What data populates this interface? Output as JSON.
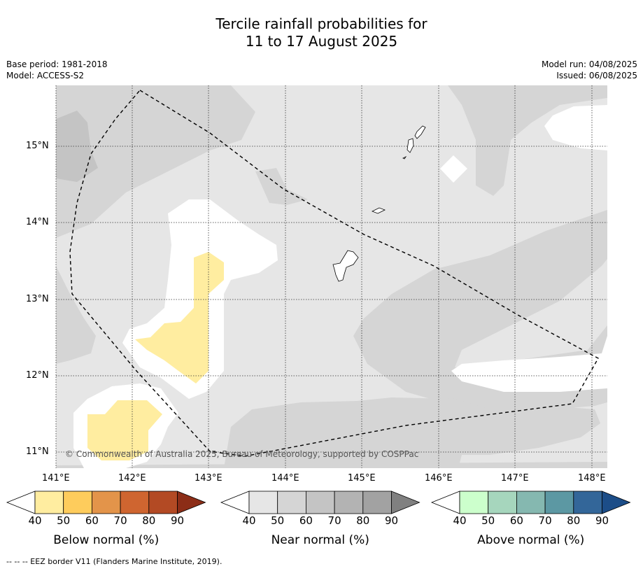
{
  "header": {
    "title_line1": "Tercile rainfall probabilities for",
    "title_line2": "11 to 17 August 2025",
    "base_period": "Base period: 1981-2018",
    "model": "Model: ACCESS-S2",
    "model_run": "Model run: 04/08/2025",
    "issued": "Issued: 06/08/2025"
  },
  "map": {
    "lat_labels": [
      "15°N",
      "14°N",
      "13°N",
      "12°N",
      "11°N"
    ],
    "lon_labels": [
      "141°E",
      "142°E",
      "143°E",
      "144°E",
      "145°E",
      "146°E",
      "147°E",
      "148°E"
    ],
    "copyright": "© Commonwealth of Australia 2025, Bureau of Meteorology, supported by COSPPac",
    "colors": {
      "near40": "#e6e6e6",
      "near50": "#d5d5d5",
      "near60": "#c4c4c4",
      "below40": "#ffffff",
      "below50": "#ffeda0"
    }
  },
  "colorbars": [
    {
      "title": "Below normal (%)",
      "ticks": [
        "40",
        "50",
        "60",
        "70",
        "80",
        "90"
      ],
      "colors": [
        "#ffeda0",
        "#fecc5c",
        "#e3944a",
        "#cf6530",
        "#b34a24",
        "#8c2d17"
      ]
    },
    {
      "title": "Near normal (%)",
      "ticks": [
        "40",
        "50",
        "60",
        "70",
        "80",
        "90"
      ],
      "colors": [
        "#e6e6e6",
        "#d5d5d5",
        "#c4c4c4",
        "#b3b3b3",
        "#a2a2a2",
        "#808080"
      ]
    },
    {
      "title": "Above normal (%)",
      "ticks": [
        "40",
        "50",
        "60",
        "70",
        "80",
        "90"
      ],
      "colors": [
        "#ccffcc",
        "#a6d6bd",
        "#85b8b0",
        "#5c98a3",
        "#336699",
        "#1c4d88"
      ]
    }
  ],
  "footer": "--  --  -- EEZ border V11 (Flanders Marine Institute, 2019)."
}
